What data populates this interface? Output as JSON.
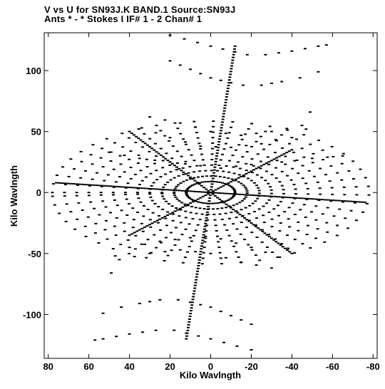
{
  "title": {
    "line1": "V vs U for SN93J.K BAND.1   Source:SN93J",
    "line2": "Ants * - *     Stokes I   IF# 1 - 2   Chan# 1"
  },
  "chart_data": {
    "type": "scatter",
    "title": "V vs U for SN93J.K BAND.1   Source:SN93J",
    "subtitle": "Ants * - *     Stokes I   IF# 1 - 2   Chan# 1",
    "xlabel": "Kilo Wavlngth",
    "ylabel": "Kilo Wavlngth",
    "xlim": [
      82,
      -82
    ],
    "ylim": [
      -136,
      131
    ],
    "x_reversed": true,
    "xticks": [
      80,
      60,
      40,
      20,
      0,
      -20,
      -40,
      -60,
      -80
    ],
    "yticks": [
      100,
      50,
      0,
      -50,
      -100
    ],
    "xtick_labels": [
      "80",
      "60",
      "40",
      "20",
      "0",
      "-20",
      "-40",
      "-60",
      "-80"
    ],
    "ytick_labels": [
      "100",
      "50",
      "0",
      "-50",
      "-100"
    ],
    "grid": false,
    "legend": "none",
    "marker_color": "#000000",
    "description_of_pattern": "",
    "series": [
      {
        "arcs_upper": [
          [
            [
              20,
              129
            ],
            [
              13,
              126
            ],
            [
              0,
              120
            ],
            [
              -18,
              113
            ],
            [
              -27,
              113
            ],
            [
              -40,
              116
            ],
            [
              -53,
              120
            ],
            [
              -57,
              121
            ]
          ],
          [
            [
              20,
              108
            ],
            [
              10,
              101
            ],
            [
              0,
              94
            ],
            [
              -10,
              90
            ],
            [
              -16,
              88
            ],
            [
              -25,
              88
            ],
            [
              -35,
              91
            ],
            [
              -44,
              94
            ],
            [
              -53,
              99
            ]
          ],
          [
            [
              30,
              62
            ],
            [
              15,
              57
            ],
            [
              0,
              50
            ],
            [
              -15,
              47
            ],
            [
              -30,
              50
            ],
            [
              -45,
              55
            ],
            [
              -49,
              66
            ]
          ],
          [
            [
              34,
              53
            ],
            [
              20,
              45
            ],
            [
              5,
              38
            ],
            [
              -10,
              37
            ],
            [
              -25,
              40
            ],
            [
              -40,
              45
            ],
            [
              -47,
              52
            ]
          ],
          [
            [
              50,
              33
            ],
            [
              35,
              28
            ],
            [
              20,
              25
            ],
            [
              5,
              22
            ]
          ],
          [
            [
              -5,
              20
            ],
            [
              -20,
              23
            ],
            [
              -35,
              25
            ],
            [
              -50,
              28
            ],
            [
              -65,
              30
            ]
          ]
        ],
        "arcs_lower": [
          [
            [
              -20,
              -129
            ],
            [
              -13,
              -126
            ],
            [
              0,
              -120
            ],
            [
              18,
              -113
            ],
            [
              27,
              -113
            ],
            [
              40,
              -116
            ],
            [
              53,
              -120
            ],
            [
              57,
              -121
            ]
          ],
          [
            [
              -20,
              -108
            ],
            [
              -10,
              -101
            ],
            [
              0,
              -94
            ],
            [
              10,
              -90
            ],
            [
              16,
              -88
            ],
            [
              25,
              -88
            ],
            [
              35,
              -91
            ],
            [
              44,
              -94
            ],
            [
              53,
              -99
            ]
          ],
          [
            [
              -30,
              -62
            ],
            [
              -15,
              -57
            ],
            [
              0,
              -50
            ],
            [
              15,
              -47
            ],
            [
              30,
              -50
            ],
            [
              45,
              -55
            ],
            [
              49,
              -66
            ]
          ],
          [
            [
              -34,
              -53
            ],
            [
              -20,
              -45
            ],
            [
              -5,
              -38
            ],
            [
              10,
              -37
            ],
            [
              25,
              -40
            ],
            [
              40,
              -45
            ],
            [
              47,
              -52
            ]
          ]
        ],
        "spokes": [
          {
            "from": [
              0,
              0
            ],
            "to": [
              -12,
              120
            ]
          },
          {
            "from": [
              0,
              0
            ],
            "to": [
              12,
              -120
            ]
          },
          {
            "from": [
              0,
              0
            ],
            "to": [
              76,
              8
            ]
          },
          {
            "from": [
              0,
              0
            ],
            "to": [
              -76,
              -8
            ]
          },
          {
            "from": [
              0,
              0
            ],
            "to": [
              40,
              50
            ]
          },
          {
            "from": [
              0,
              0
            ],
            "to": [
              -40,
              -50
            ]
          },
          {
            "from": [
              0,
              0
            ],
            "to": [
              -40,
              35
            ]
          },
          {
            "from": [
              0,
              0
            ],
            "to": [
              40,
              -35
            ]
          }
        ]
      }
    ]
  }
}
